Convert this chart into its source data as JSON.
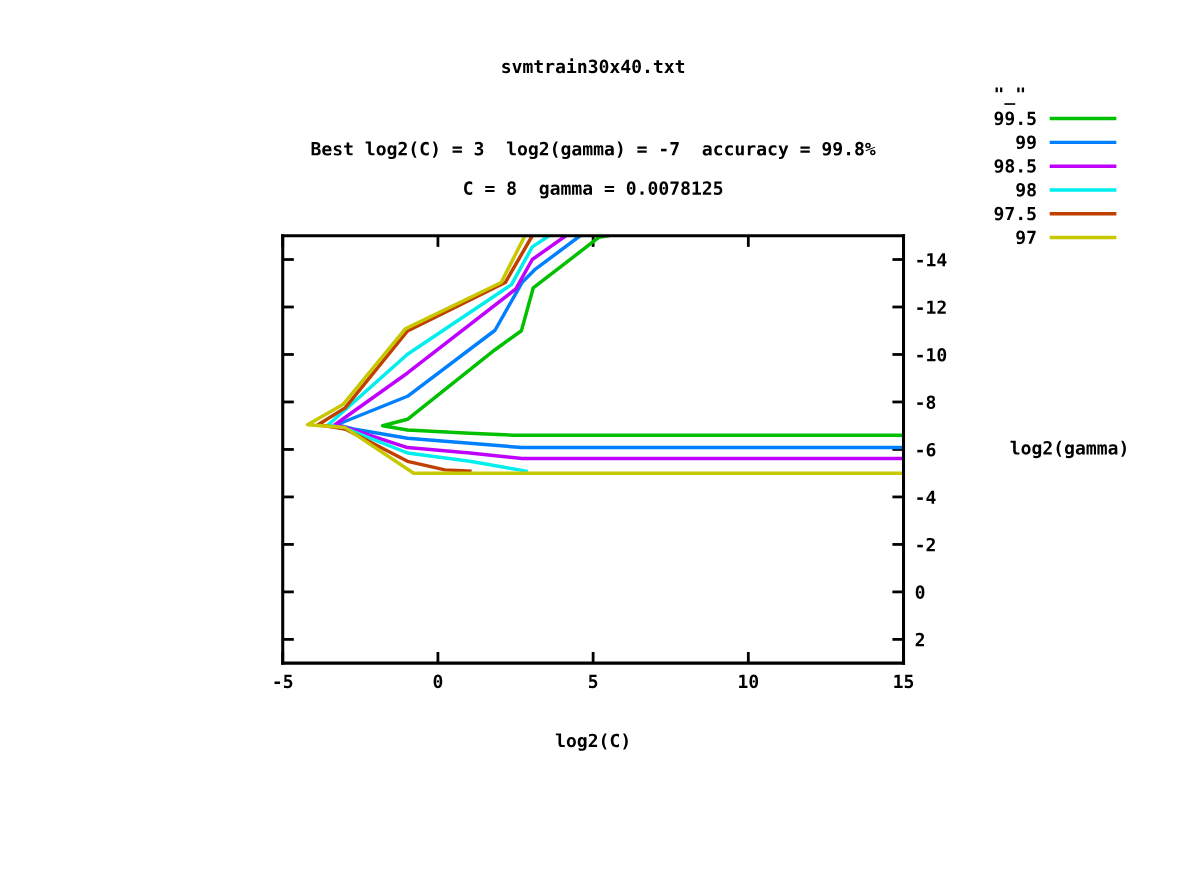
{
  "chart_data": {
    "type": "line",
    "title": "svmtrain30x40.txt",
    "subtitle": "Best log2(C) = 3  log2(gamma) = -7  accuracy = 99.8%\nC = 8  gamma = 0.0078125",
    "xlabel": "log2(C)",
    "ylabel": "log2(gamma)",
    "legend_title": "\"_\"",
    "legend": "top right",
    "grid": false,
    "marker": "none",
    "line_style": "solid",
    "xlim": [
      -5,
      15
    ],
    "xticks": [
      -5,
      0,
      5,
      10,
      15
    ],
    "ylim": [
      3,
      -15
    ],
    "yticks": [
      -14,
      -12,
      -10,
      -8,
      -6,
      -4,
      -2,
      0,
      2
    ],
    "series": [
      {
        "name": "99.5",
        "color": "#00c000",
        "x": [
          5.48,
          5.19,
          3.07,
          2.69,
          1.84,
          -0.98,
          -1.78,
          -0.98,
          1.03,
          2.44,
          15
        ],
        "values": [
          -15,
          -14.94,
          -12.8,
          -11.0,
          -10.2,
          -7.27,
          -7.0,
          -6.82,
          -6.68,
          -6.6,
          -6.6
        ]
      },
      {
        "name": "99",
        "color": "#0080ff",
        "x": [
          4.58,
          3.11,
          2.71,
          1.84,
          -0.98,
          -3.26,
          -2.72,
          -0.98,
          1.03,
          2.71,
          15
        ],
        "values": [
          -15,
          -13.56,
          -13.03,
          -11.02,
          -8.24,
          -7.04,
          -6.86,
          -6.47,
          -6.26,
          -6.08,
          -6.08
        ]
      },
      {
        "name": "98.5",
        "color": "#c000ff",
        "x": [
          4.12,
          3.04,
          2.51,
          -0.98,
          -3.32,
          -2.72,
          -0.98,
          1.03,
          2.71,
          15
        ],
        "values": [
          -15,
          -14.0,
          -12.76,
          -9.22,
          -7.04,
          -6.82,
          -6.08,
          -5.85,
          -5.62,
          -5.62
        ]
      },
      {
        "name": "98",
        "color": "#00eeee",
        "x": [
          3.58,
          3.04,
          2.37,
          -0.98,
          -3.53,
          -2.86,
          -0.98,
          1.03,
          2.84
        ],
        "values": [
          -15,
          -14.53,
          -12.94,
          -10.01,
          -7.04,
          -6.82,
          -5.85,
          -5.5,
          -5.09
        ]
      },
      {
        "name": "97.5",
        "color": "#c04000",
        "x": [
          3.04,
          2.17,
          -0.98,
          -2.99,
          -3.86,
          -2.99,
          -0.98,
          0.23,
          1.03
        ],
        "values": [
          -15,
          -13.03,
          -10.99,
          -7.75,
          -7.04,
          -6.86,
          -5.5,
          -5.14,
          -5.09
        ]
      },
      {
        "name": "97",
        "color": "#c8c800",
        "x": [
          2.8,
          2.04,
          -1.05,
          -3.06,
          -4.2,
          -2.99,
          -0.78,
          15
        ],
        "values": [
          -15,
          -13.03,
          -11.08,
          -7.89,
          -7.04,
          -6.92,
          -5.0,
          -5.0
        ]
      }
    ]
  }
}
